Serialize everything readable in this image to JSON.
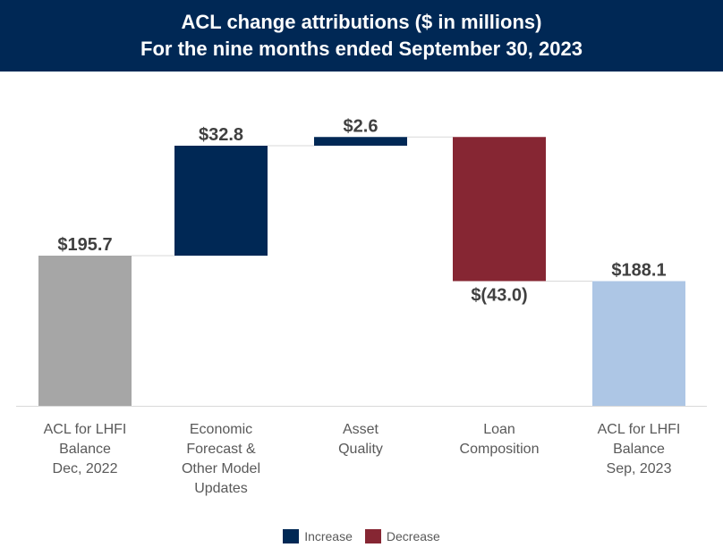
{
  "chart_data": {
    "type": "waterfall",
    "title": [
      "ACL change attributions ($ in millions)",
      "For the nine months ended September 30, 2023"
    ],
    "categories": [
      [
        "ACL for LHFI",
        "Balance",
        "Dec, 2022"
      ],
      [
        "Economic",
        "Forecast &",
        "Other Model",
        "Updates"
      ],
      [
        "Asset",
        "Quality"
      ],
      [
        "Loan",
        "Composition"
      ],
      [
        "ACL for LHFI",
        "Balance",
        "Sep, 2023"
      ]
    ],
    "values": [
      195.7,
      32.8,
      2.6,
      -43.0,
      188.1
    ],
    "kinds": [
      "total",
      "increase",
      "increase",
      "decrease",
      "total"
    ],
    "data_labels": [
      "$195.7",
      "$32.8",
      "$2.6",
      "$(43.0)",
      "$188.1"
    ],
    "ylim": [
      150.9,
      235
    ],
    "grid": false,
    "legend": {
      "position": "bottom",
      "entries": [
        {
          "label": "Increase",
          "color": "#002855"
        },
        {
          "label": "Decrease",
          "color": "#862633"
        }
      ]
    },
    "colors": {
      "start_total": "#a6a6a6",
      "end_total": "#adc6e5",
      "increase": "#002855",
      "decrease": "#862633",
      "connector": "#d9d9d9"
    }
  }
}
